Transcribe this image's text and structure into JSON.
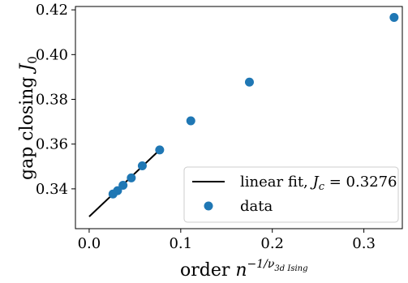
{
  "chart_data": {
    "type": "scatter",
    "xlabel_prefix": "order ",
    "xlabel_base": "n",
    "xlabel_sup_prefix": "−1/ν",
    "xlabel_sup_sub": "3d Ising",
    "ylabel_prefix": "gap closing ",
    "ylabel_var": "J",
    "ylabel_sub": "0",
    "xlim": [
      -0.015,
      0.342
    ],
    "ylim": [
      0.3222,
      0.4215
    ],
    "xticks": [
      0.0,
      0.1,
      0.2,
      0.3
    ],
    "xtick_labels": [
      "0.0",
      "0.1",
      "0.2",
      "0.3"
    ],
    "yticks": [
      0.34,
      0.36,
      0.38,
      0.4,
      0.42
    ],
    "ytick_labels": [
      "0.34",
      "0.36",
      "0.38",
      "0.40",
      "0.42"
    ],
    "series": [
      {
        "name": "data",
        "type": "scatter",
        "color": "#1f77b4",
        "x": [
          0.026,
          0.031,
          0.037,
          0.046,
          0.058,
          0.077,
          0.111,
          0.175,
          0.333
        ],
        "y": [
          0.3377,
          0.3392,
          0.3416,
          0.3449,
          0.3503,
          0.3574,
          0.3704,
          0.3877,
          0.4166
        ]
      },
      {
        "name_prefix": "linear fit, ",
        "name_var": "J",
        "name_sub": "c",
        "name_suffix": " = 0.3276",
        "type": "line",
        "color": "#000000",
        "x": [
          0.0,
          0.077
        ],
        "y": [
          0.3276,
          0.3574
        ]
      }
    ],
    "legend_position": "lower-right",
    "grid": false
  }
}
